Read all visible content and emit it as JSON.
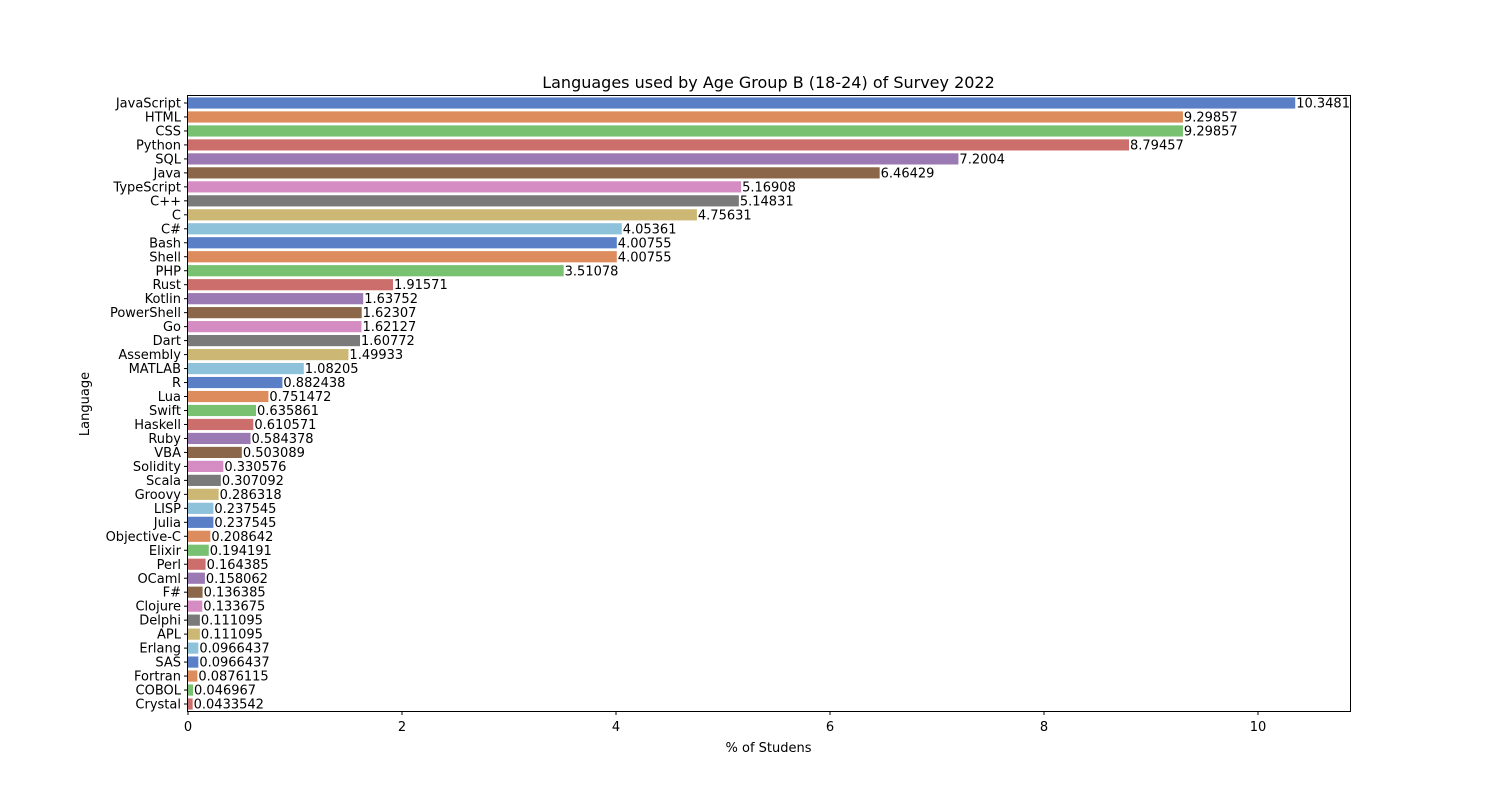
{
  "chart_data": {
    "type": "bar",
    "orientation": "horizontal",
    "title": "Languages used by Age Group B (18-24) of Survey 2022",
    "xlabel": "% of Studens",
    "ylabel": "Language",
    "xlim": [
      0,
      10.86
    ],
    "xticks": [
      0,
      2,
      4,
      6,
      8,
      10
    ],
    "grid": false,
    "categories": [
      "JavaScript",
      "HTML",
      "CSS",
      "Python",
      "SQL",
      "Java",
      "TypeScript",
      "C++",
      "C",
      "C#",
      "Bash",
      "Shell",
      "PHP",
      "Rust",
      "Kotlin",
      "PowerShell",
      "Go",
      "Dart",
      "Assembly",
      "MATLAB",
      "R",
      "Lua",
      "Swift",
      "Haskell",
      "Ruby",
      "VBA",
      "Solidity",
      "Scala",
      "Groovy",
      "LISP",
      "Julia",
      "Objective-C",
      "Elixir",
      "Perl",
      "OCaml",
      "F#",
      "Clojure",
      "Delphi",
      "APL",
      "Erlang",
      "SAS",
      "Fortran",
      "COBOL",
      "Crystal"
    ],
    "values": [
      10.3481,
      9.29857,
      9.29857,
      8.79457,
      7.2004,
      6.46429,
      5.16908,
      5.14831,
      4.75631,
      4.05361,
      4.00755,
      4.00755,
      3.51078,
      1.91571,
      1.63752,
      1.62307,
      1.62127,
      1.60772,
      1.49933,
      1.08205,
      0.882438,
      0.751472,
      0.635861,
      0.610571,
      0.584378,
      0.503089,
      0.330576,
      0.307092,
      0.286318,
      0.237545,
      0.237545,
      0.208642,
      0.194191,
      0.164385,
      0.158062,
      0.136385,
      0.133675,
      0.111095,
      0.111095,
      0.0966437,
      0.0966437,
      0.0876115,
      0.046967,
      0.0433542
    ],
    "value_labels": [
      "10.3481",
      "9.29857",
      "9.29857",
      "8.79457",
      "7.2004",
      "6.46429",
      "5.16908",
      "5.14831",
      "4.75631",
      "4.05361",
      "4.00755",
      "4.00755",
      "3.51078",
      "1.91571",
      "1.63752",
      "1.62307",
      "1.62127",
      "1.60772",
      "1.49933",
      "1.08205",
      "0.882438",
      "0.751472",
      "0.635861",
      "0.610571",
      "0.584378",
      "0.503089",
      "0.330576",
      "0.307092",
      "0.286318",
      "0.237545",
      "0.237545",
      "0.208642",
      "0.194191",
      "0.164385",
      "0.158062",
      "0.136385",
      "0.133675",
      "0.111095",
      "0.111095",
      "0.0966437",
      "0.0966437",
      "0.0876115",
      "0.046967",
      "0.0433542"
    ],
    "palette": [
      "#5b7fc7",
      "#dd8c5d",
      "#77c170",
      "#cc6f6c",
      "#9b79b2",
      "#8c6648",
      "#d58cc2",
      "#7a7a7a",
      "#ccb874",
      "#8ec1da"
    ]
  }
}
